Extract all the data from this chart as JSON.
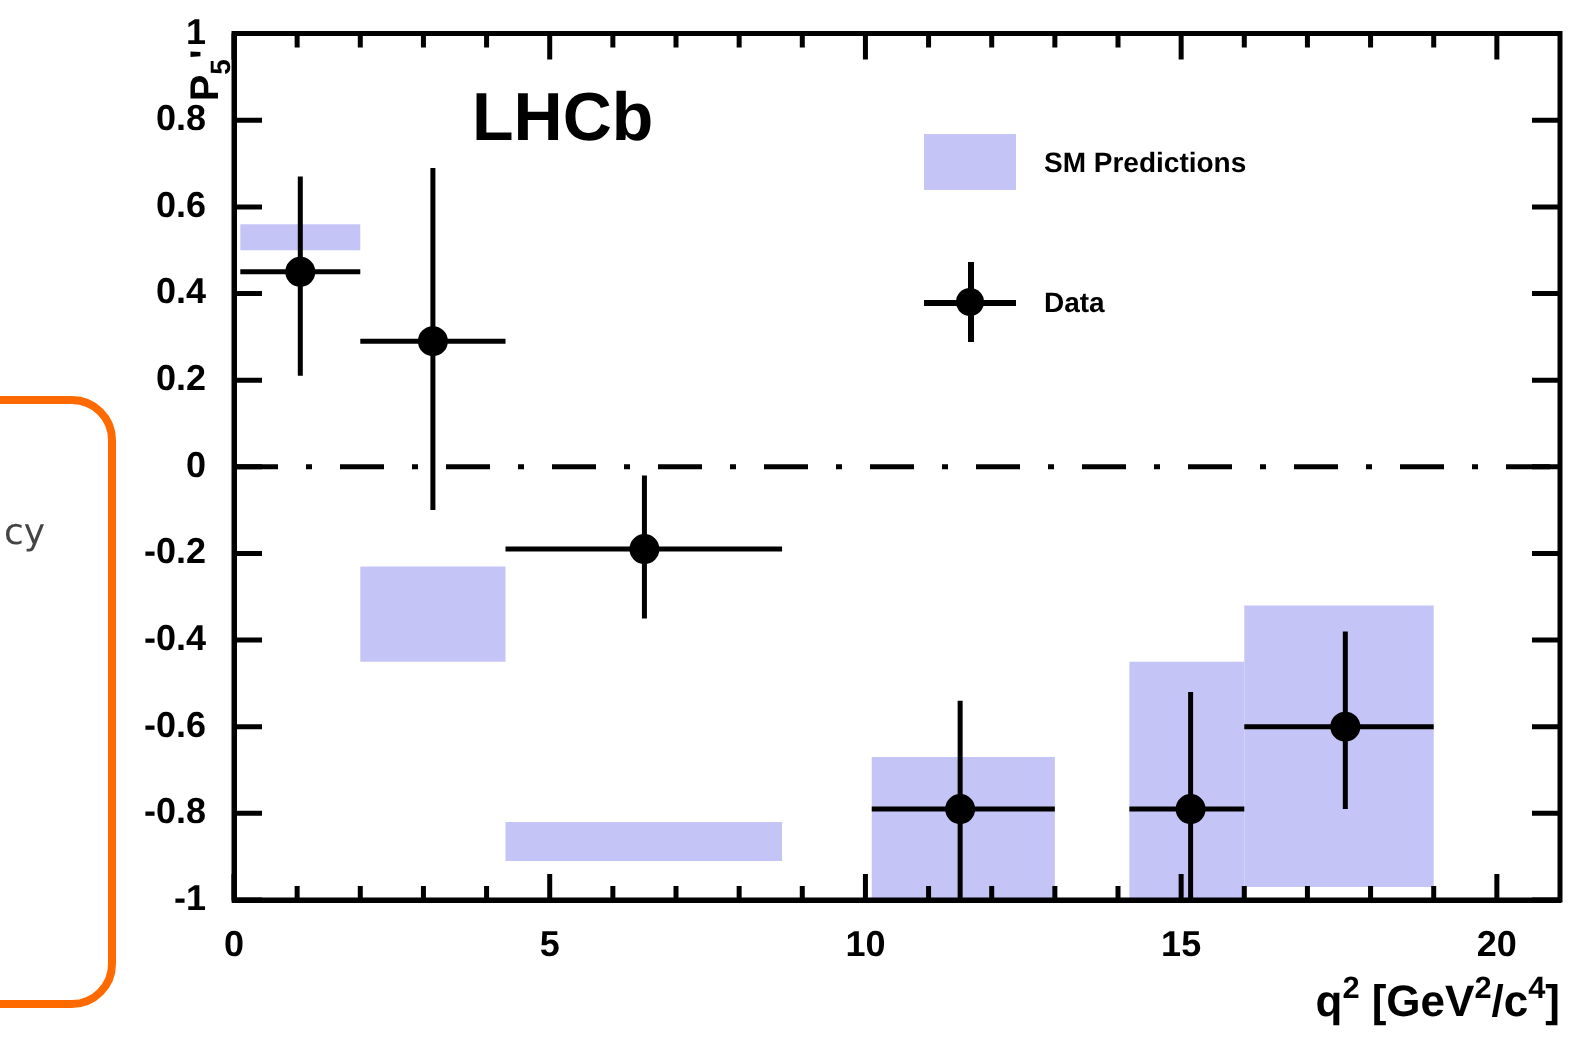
{
  "chart_data": {
    "type": "scatter",
    "ylabel": "P$_{5}$'",
    "xlabel": "q$^{2}$ [GeV$^{2}$/c$^{4}$]",
    "annotations": [
      "LHCb",
      "cy"
    ],
    "xlim": [
      0,
      21
    ],
    "xticks": [
      0,
      {
        "value": 1,
        "label": null
      },
      {
        "value": 2,
        "label": null
      },
      {
        "value": 3,
        "label": null
      },
      {
        "value": 4,
        "label": null
      },
      5,
      {
        "value": 6,
        "label": null
      },
      {
        "value": 7,
        "label": null
      },
      {
        "value": 8,
        "label": null
      },
      {
        "value": 9,
        "label": null
      },
      10,
      {
        "value": 11,
        "label": null
      },
      {
        "value": 12,
        "label": null
      },
      {
        "value": 13,
        "label": null
      },
      {
        "value": 14,
        "label": null
      },
      15,
      {
        "value": 16,
        "label": null
      },
      {
        "value": 17,
        "label": null
      },
      {
        "value": 18,
        "label": null
      },
      {
        "value": 19,
        "label": null
      },
      20
    ],
    "ylim": [
      -1,
      1
    ],
    "yticks": [
      -1,
      -0.8,
      -0.6,
      -0.4,
      -0.2,
      0,
      0.2,
      0.4,
      0.6,
      0.8,
      1
    ],
    "legend": "top right",
    "marker": "circle",
    "ref_lines": [
      {
        "axis": "y",
        "value": 0
      }
    ],
    "series": [
      {
        "name": "SM Predictions",
        "type": "bar",
        "color": "#c4c4f6",
        "x": [
          1.05,
          3.15,
          6.49,
          11.55,
          15.09,
          17.5
        ],
        "base": [
          0.5,
          -0.45,
          -0.91,
          -1,
          -1,
          -0.97
        ],
        "values": [
          0.06,
          0.22,
          0.09,
          0.33,
          0.55,
          0.65
        ]
      },
      {
        "name": "Data",
        "type": "scatter",
        "color": "#000000",
        "x": [
          1.05,
          3.15,
          6.5,
          11.5,
          15.15,
          17.6
        ],
        "values": [
          0.45,
          0.29,
          -0.19,
          -0.79,
          -0.79,
          -0.6
        ],
        "errors": [
          [
            0.21,
            0.67
          ],
          [
            -0.1,
            0.69
          ],
          [
            -0.35,
            -0.02
          ],
          [
            -1,
            -0.54
          ],
          [
            -1,
            -0.52
          ],
          [
            -0.79,
            -0.38
          ]
        ],
        "xerrors": [
          [
            0.1,
            2
          ],
          [
            2,
            4.3
          ],
          [
            4.3,
            8.68
          ],
          [
            10.1,
            13
          ],
          [
            14.18,
            16
          ],
          [
            16,
            19
          ]
        ]
      }
    ]
  }
}
